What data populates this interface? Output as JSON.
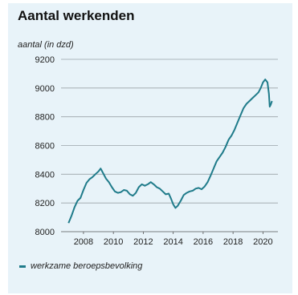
{
  "chart_data": {
    "type": "line",
    "title": "Aantal werkenden",
    "ylabel": "aantal (in dzd)",
    "xlabel": "",
    "ylim": [
      8000,
      9200
    ],
    "xlim": [
      2006.5,
      2021
    ],
    "yticks": [
      8000,
      8200,
      8400,
      8600,
      8800,
      9000,
      9200
    ],
    "xticks": [
      2008,
      2010,
      2012,
      2014,
      2016,
      2018,
      2020
    ],
    "grid": true,
    "legend_position": "bottom-left",
    "line_color": "#1f7b8a",
    "series": [
      {
        "name": "werkzame beroepsbevolking",
        "points": [
          [
            2007.0,
            8060
          ],
          [
            2007.2,
            8110
          ],
          [
            2007.4,
            8170
          ],
          [
            2007.6,
            8215
          ],
          [
            2007.8,
            8235
          ],
          [
            2008.0,
            8290
          ],
          [
            2008.2,
            8340
          ],
          [
            2008.4,
            8365
          ],
          [
            2008.6,
            8380
          ],
          [
            2008.8,
            8400
          ],
          [
            2009.0,
            8420
          ],
          [
            2009.15,
            8440
          ],
          [
            2009.3,
            8410
          ],
          [
            2009.5,
            8370
          ],
          [
            2009.7,
            8345
          ],
          [
            2009.9,
            8310
          ],
          [
            2010.1,
            8280
          ],
          [
            2010.3,
            8270
          ],
          [
            2010.5,
            8275
          ],
          [
            2010.7,
            8290
          ],
          [
            2010.9,
            8285
          ],
          [
            2011.1,
            8260
          ],
          [
            2011.3,
            8250
          ],
          [
            2011.5,
            8270
          ],
          [
            2011.7,
            8310
          ],
          [
            2011.9,
            8330
          ],
          [
            2012.1,
            8320
          ],
          [
            2012.3,
            8330
          ],
          [
            2012.5,
            8345
          ],
          [
            2012.7,
            8330
          ],
          [
            2012.9,
            8310
          ],
          [
            2013.1,
            8300
          ],
          [
            2013.3,
            8280
          ],
          [
            2013.5,
            8260
          ],
          [
            2013.7,
            8265
          ],
          [
            2013.85,
            8230
          ],
          [
            2014.0,
            8190
          ],
          [
            2014.15,
            8165
          ],
          [
            2014.3,
            8180
          ],
          [
            2014.5,
            8215
          ],
          [
            2014.7,
            8255
          ],
          [
            2014.9,
            8270
          ],
          [
            2015.1,
            8280
          ],
          [
            2015.3,
            8285
          ],
          [
            2015.5,
            8300
          ],
          [
            2015.7,
            8305
          ],
          [
            2015.9,
            8295
          ],
          [
            2016.1,
            8315
          ],
          [
            2016.3,
            8345
          ],
          [
            2016.5,
            8390
          ],
          [
            2016.7,
            8440
          ],
          [
            2016.9,
            8490
          ],
          [
            2017.1,
            8520
          ],
          [
            2017.3,
            8550
          ],
          [
            2017.5,
            8590
          ],
          [
            2017.7,
            8640
          ],
          [
            2017.9,
            8670
          ],
          [
            2018.1,
            8710
          ],
          [
            2018.3,
            8760
          ],
          [
            2018.5,
            8810
          ],
          [
            2018.7,
            8860
          ],
          [
            2018.9,
            8890
          ],
          [
            2019.1,
            8910
          ],
          [
            2019.3,
            8930
          ],
          [
            2019.5,
            8950
          ],
          [
            2019.7,
            8970
          ],
          [
            2019.85,
            9000
          ],
          [
            2020.0,
            9040
          ],
          [
            2020.15,
            9060
          ],
          [
            2020.3,
            9040
          ],
          [
            2020.4,
            8960
          ],
          [
            2020.45,
            8870
          ],
          [
            2020.52,
            8885
          ],
          [
            2020.6,
            8910
          ]
        ]
      }
    ]
  }
}
